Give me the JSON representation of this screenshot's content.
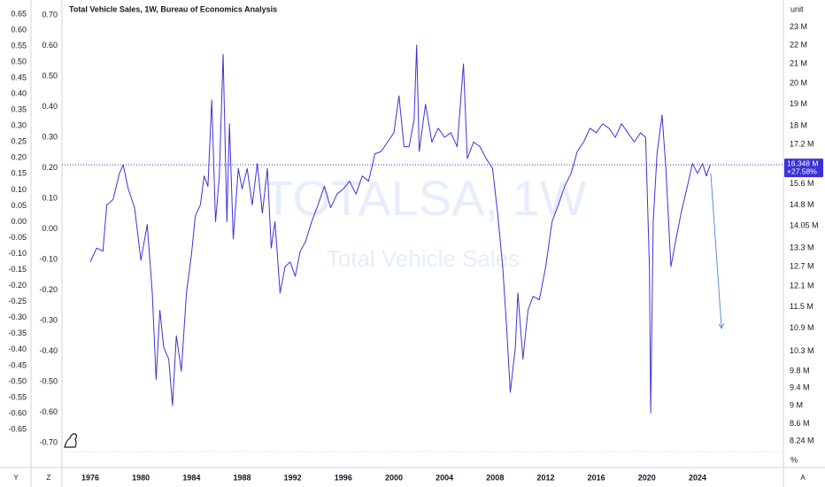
{
  "chart_data": {
    "type": "line",
    "title": "Total Vehicle Sales, 1W, Bureau of Economics Analysis",
    "watermark": "TOTALSA, 1W",
    "x": [
      1976.0,
      1976.5,
      1977.0,
      1977.3,
      1977.8,
      1978.3,
      1978.6,
      1979.0,
      1979.5,
      1980.0,
      1980.5,
      1980.9,
      1981.2,
      1981.5,
      1981.8,
      1982.2,
      1982.5,
      1982.8,
      1983.2,
      1983.6,
      1984.0,
      1984.3,
      1984.7,
      1985.0,
      1985.3,
      1985.6,
      1985.9,
      1986.2,
      1986.5,
      1986.8,
      1987.0,
      1987.3,
      1987.7,
      1988.0,
      1988.4,
      1988.8,
      1989.2,
      1989.6,
      1990.0,
      1990.3,
      1990.6,
      1991.0,
      1991.4,
      1991.8,
      1992.2,
      1992.6,
      1993.0,
      1993.5,
      1994.0,
      1994.5,
      1995.0,
      1995.5,
      1996.0,
      1996.5,
      1997.0,
      1997.5,
      1998.0,
      1998.5,
      1999.0,
      1999.5,
      2000.0,
      2000.4,
      2000.8,
      2001.2,
      2001.6,
      2001.8,
      2002.0,
      2002.5,
      2003.0,
      2003.5,
      2004.0,
      2004.5,
      2005.0,
      2005.5,
      2005.8,
      2006.3,
      2006.8,
      2007.3,
      2007.8,
      2008.2,
      2008.6,
      2008.9,
      2009.2,
      2009.6,
      2009.8,
      2010.2,
      2010.6,
      2011.0,
      2011.5,
      2012.0,
      2012.5,
      2013.0,
      2013.5,
      2014.0,
      2014.5,
      2015.0,
      2015.5,
      2016.0,
      2016.5,
      2017.0,
      2017.5,
      2018.0,
      2018.5,
      2019.0,
      2019.5,
      2019.9,
      2020.2,
      2020.3,
      2020.5,
      2020.8,
      2021.2,
      2021.5,
      2021.9,
      2022.3,
      2022.7,
      2023.2,
      2023.6,
      2024.0,
      2024.4,
      2024.7,
      2025.0
    ],
    "series": [
      {
        "name": "Total Vehicle Sales",
        "color": "#3b33d6",
        "values": [
          12.85,
          13.3,
          13.2,
          14.8,
          15.0,
          16.0,
          16.35,
          15.4,
          14.7,
          12.9,
          14.1,
          11.9,
          9.6,
          11.4,
          10.4,
          10.1,
          9.0,
          10.7,
          9.8,
          11.9,
          13.1,
          14.4,
          14.8,
          15.9,
          15.5,
          19.2,
          14.2,
          15.9,
          21.5,
          14.2,
          18.1,
          13.6,
          16.2,
          15.4,
          16.2,
          14.8,
          16.4,
          14.5,
          16.2,
          13.3,
          14.2,
          11.9,
          12.7,
          12.85,
          12.4,
          13.2,
          13.5,
          14.2,
          14.8,
          15.5,
          14.7,
          15.2,
          15.4,
          15.7,
          15.2,
          15.9,
          15.7,
          16.8,
          16.9,
          17.3,
          17.7,
          19.4,
          17.1,
          17.1,
          18.3,
          22.0,
          16.9,
          19.0,
          17.3,
          17.9,
          17.5,
          17.7,
          17.1,
          21.0,
          16.6,
          17.3,
          17.1,
          16.6,
          16.2,
          14.5,
          12.7,
          11.0,
          9.3,
          10.4,
          11.9,
          10.1,
          11.4,
          11.8,
          11.7,
          12.7,
          14.2,
          14.8,
          15.5,
          16.0,
          16.9,
          17.3,
          17.9,
          17.7,
          18.1,
          17.9,
          17.5,
          18.1,
          17.7,
          17.3,
          17.7,
          17.5,
          12.7,
          8.84,
          14.2,
          16.8,
          18.5,
          16.2,
          12.7,
          13.6,
          14.5,
          15.5,
          16.4,
          16.0,
          16.4,
          15.9,
          16.35
        ]
      }
    ],
    "last_value_label": "16.348 M",
    "change_label": "+27.58%",
    "arrow": {
      "color": "#5b8fd9",
      "x": [
        2025.05,
        2025.9
      ],
      "y": [
        16.0,
        10.9
      ]
    },
    "xlim": [
      1973.76,
      2030.79
    ],
    "xticks": [
      1976,
      1980,
      1984,
      1988,
      1992,
      1996,
      2000,
      2004,
      2008,
      2012,
      2016,
      2020,
      2024
    ],
    "yscale": "log",
    "ylabel": "unit",
    "ylim": [
      8.03,
      24.6
    ],
    "yticks": [
      {
        "value": 23,
        "label": "23 M"
      },
      {
        "value": 22,
        "label": "22 M"
      },
      {
        "value": 21,
        "label": "21 M"
      },
      {
        "value": 20,
        "label": "20 M"
      },
      {
        "value": 19,
        "label": "19 M"
      },
      {
        "value": 18,
        "label": "18 M"
      },
      {
        "value": 17.2,
        "label": "17.2 M"
      },
      {
        "value": 15.6,
        "label": "15.6 M"
      },
      {
        "value": 14.8,
        "label": "14.8 M"
      },
      {
        "value": 14.05,
        "label": "14.05 M"
      },
      {
        "value": 13.3,
        "label": "13.3 M"
      },
      {
        "value": 12.7,
        "label": "12.7 M"
      },
      {
        "value": 12.1,
        "label": "12.1 M"
      },
      {
        "value": 11.5,
        "label": "11.5 M"
      },
      {
        "value": 10.9,
        "label": "10.9 M"
      },
      {
        "value": 10.3,
        "label": "10.3 M"
      },
      {
        "value": 9.8,
        "label": "9.8 M"
      },
      {
        "value": 9.4,
        "label": "9.4 M"
      },
      {
        "value": 9,
        "label": "9 M"
      },
      {
        "value": 8.6,
        "label": "8.6 M"
      },
      {
        "value": 8.24,
        "label": "8.24 M"
      }
    ],
    "percent_label": "%",
    "y2lim": [
      -0.719,
      0.694
    ],
    "y2ticks": [
      {
        "value": 0.65,
        "label": "0.65"
      },
      {
        "value": 0.6,
        "label": "0.60"
      },
      {
        "value": 0.55,
        "label": "0.55"
      },
      {
        "value": 0.5,
        "label": "0.50"
      },
      {
        "value": 0.45,
        "label": "0.45"
      },
      {
        "value": 0.4,
        "label": "0.40"
      },
      {
        "value": 0.35,
        "label": "0.35"
      },
      {
        "value": 0.3,
        "label": "0.30"
      },
      {
        "value": 0.25,
        "label": "0.25"
      },
      {
        "value": 0.2,
        "label": "0.20"
      },
      {
        "value": 0.15,
        "label": "0.15"
      },
      {
        "value": 0.1,
        "label": "0.10"
      },
      {
        "value": 0.05,
        "label": "0.05"
      },
      {
        "value": 0,
        "label": "0.00"
      },
      {
        "value": -0.05,
        "label": "-0.05"
      },
      {
        "value": -0.1,
        "label": "-0.10"
      },
      {
        "value": -0.15,
        "label": "-0.15"
      },
      {
        "value": -0.2,
        "label": "-0.20"
      },
      {
        "value": -0.25,
        "label": "-0.25"
      },
      {
        "value": -0.3,
        "label": "-0.30"
      },
      {
        "value": -0.35,
        "label": "-0.35"
      },
      {
        "value": -0.4,
        "label": "-0.40"
      },
      {
        "value": -0.45,
        "label": "-0.45"
      },
      {
        "value": -0.5,
        "label": "-0.50"
      },
      {
        "value": -0.55,
        "label": "-0.55"
      },
      {
        "value": -0.6,
        "label": "-0.60"
      },
      {
        "value": -0.65,
        "label": "-0.65"
      }
    ],
    "y3lim": [
      -0.729,
      0.749
    ],
    "y3ticks": [
      {
        "value": 0.7,
        "label": "0.70"
      },
      {
        "value": 0.6,
        "label": "0.60"
      },
      {
        "value": 0.5,
        "label": "0.50"
      },
      {
        "value": 0.4,
        "label": "0.40"
      },
      {
        "value": 0.3,
        "label": "0.30"
      },
      {
        "value": 0.2,
        "label": "0.20"
      },
      {
        "value": 0.1,
        "label": "0.10"
      },
      {
        "value": 0,
        "label": "0.00"
      },
      {
        "value": -0.1,
        "label": "-0.10"
      },
      {
        "value": -0.2,
        "label": "-0.20"
      },
      {
        "value": -0.3,
        "label": "-0.30"
      },
      {
        "value": -0.4,
        "label": "-0.40"
      },
      {
        "value": -0.5,
        "label": "-0.50"
      },
      {
        "value": -0.6,
        "label": "-0.60"
      },
      {
        "value": -0.7,
        "label": "-0.70"
      }
    ],
    "buttons": [
      "Y",
      "Z",
      "A"
    ]
  }
}
